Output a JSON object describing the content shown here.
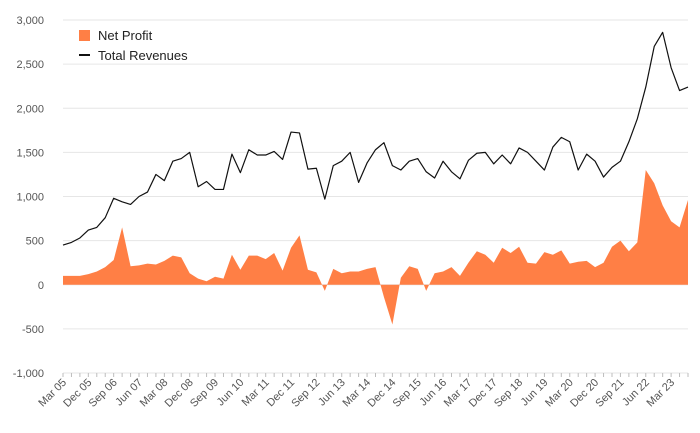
{
  "chart_data": {
    "type": "area+line",
    "title": "",
    "xlabel": "",
    "ylabel": "",
    "ylim": [
      -1000,
      3000
    ],
    "yticks": [
      -1000,
      -500,
      0,
      500,
      1000,
      1500,
      2000,
      2500,
      3000
    ],
    "ytick_labels": [
      "-1,000",
      "-500",
      "0",
      "500",
      "1,000",
      "1,500",
      "2,000",
      "2,500",
      "3,000"
    ],
    "xtick_labels": [
      "Mar 05",
      "Dec 05",
      "Sep 06",
      "Jun 07",
      "Mar 08",
      "Dec 08",
      "Sep 09",
      "Jun 10",
      "Mar 11",
      "Dec 11",
      "Sep 12",
      "Jun 13",
      "Mar 14",
      "Dec 14",
      "Sep 15",
      "Jun 16",
      "Mar 17",
      "Dec 17",
      "Sep 18",
      "Jun 19",
      "Mar 20",
      "Dec 20",
      "Sep 21",
      "Jun 22",
      "Mar 23"
    ],
    "grid": true,
    "legend_position": "top-left",
    "series": [
      {
        "name": "Net Profit",
        "kind": "area",
        "color": "#ff7f45",
        "values": [
          100,
          100,
          100,
          120,
          150,
          200,
          280,
          650,
          210,
          220,
          240,
          230,
          270,
          330,
          310,
          130,
          70,
          40,
          90,
          70,
          340,
          170,
          330,
          330,
          290,
          360,
          160,
          420,
          560,
          170,
          140,
          -70,
          180,
          130,
          150,
          150,
          180,
          200,
          -140,
          -450,
          80,
          210,
          180,
          -70,
          130,
          150,
          200,
          100,
          250,
          380,
          340,
          250,
          420,
          360,
          430,
          250,
          240,
          370,
          340,
          390,
          240,
          260,
          270,
          200,
          250,
          430,
          500,
          380,
          480,
          1300,
          1150,
          900,
          720,
          650,
          960
        ]
      },
      {
        "name": "Total Revenues",
        "kind": "line",
        "color": "#111111",
        "values": [
          450,
          480,
          530,
          620,
          650,
          760,
          980,
          940,
          910,
          1000,
          1050,
          1250,
          1180,
          1400,
          1430,
          1500,
          1110,
          1170,
          1080,
          1080,
          1480,
          1270,
          1530,
          1470,
          1470,
          1510,
          1420,
          1730,
          1720,
          1310,
          1320,
          970,
          1350,
          1400,
          1500,
          1160,
          1380,
          1530,
          1610,
          1350,
          1300,
          1400,
          1430,
          1280,
          1210,
          1400,
          1280,
          1200,
          1410,
          1490,
          1500,
          1370,
          1470,
          1370,
          1550,
          1500,
          1400,
          1300,
          1560,
          1670,
          1620,
          1300,
          1480,
          1400,
          1220,
          1330,
          1400,
          1620,
          1880,
          2240,
          2700,
          2860,
          2460,
          2200,
          2240
        ]
      }
    ]
  },
  "legend": {
    "items": [
      {
        "label": "Net Profit",
        "color": "#ff7f45",
        "marker": "square"
      },
      {
        "label": "Total Revenues",
        "color": "#111111",
        "marker": "line"
      }
    ]
  }
}
